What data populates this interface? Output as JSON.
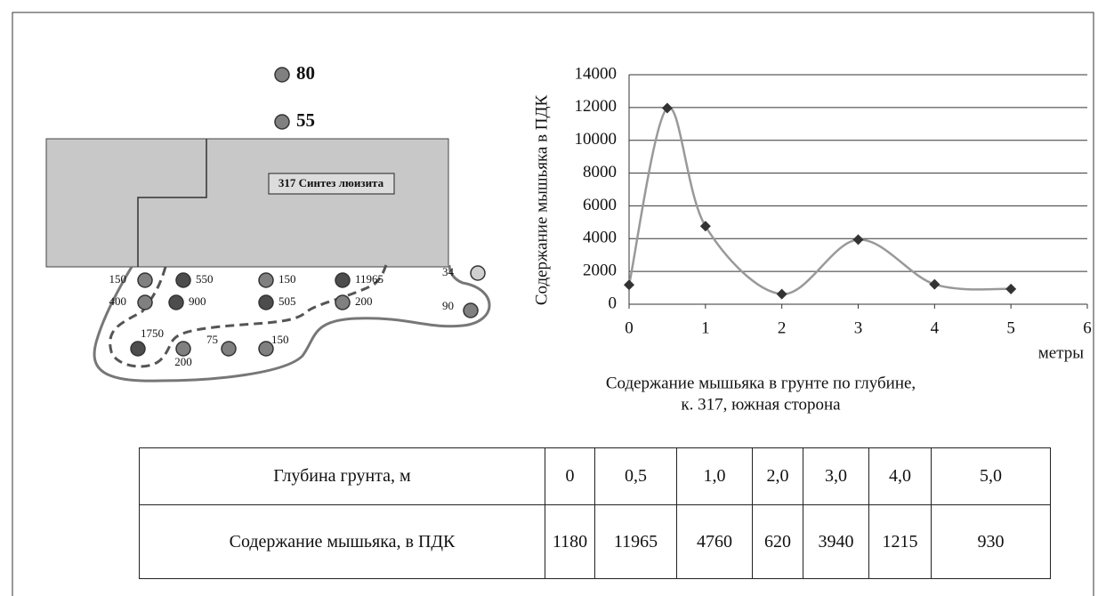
{
  "chart_data": {
    "type": "line",
    "ylabel": "Содержание мышьяка в ПДК",
    "xlabel": "метры",
    "caption": [
      "Содержание мышьяка в грунте по глубине,",
      "к. 317, южная сторона"
    ],
    "x": [
      0,
      0.5,
      1,
      2,
      3,
      4,
      5
    ],
    "series": [
      {
        "color": "#999999",
        "marker_color": "#333333",
        "values": [
          1180,
          11965,
          4760,
          620,
          3940,
          1215,
          930
        ]
      }
    ],
    "xlim": [
      0,
      6
    ],
    "xticks": [
      0,
      1,
      2,
      3,
      4,
      5,
      6
    ],
    "ylim": [
      0,
      14000
    ],
    "yticks": [
      0,
      2000,
      4000,
      6000,
      8000,
      10000,
      12000,
      14000
    ],
    "grid": true,
    "smooth": true
  },
  "map": {
    "building_label": "317 Синтез люизита",
    "points": [
      {
        "label": "80",
        "color": "#808080"
      },
      {
        "label": "55",
        "color": "#808080"
      },
      {
        "label": "150",
        "color": "#808080"
      },
      {
        "label": "550",
        "color": "#4d4d4d"
      },
      {
        "label": "150",
        "color": "#808080"
      },
      {
        "label": "11965",
        "color": "#4d4d4d"
      },
      {
        "label": "34",
        "color": "#d0d0d0"
      },
      {
        "label": "400",
        "color": "#808080"
      },
      {
        "label": "900",
        "color": "#4d4d4d"
      },
      {
        "label": "505",
        "color": "#4d4d4d"
      },
      {
        "label": "200",
        "color": "#808080"
      },
      {
        "label": "90",
        "color": "#808080"
      },
      {
        "label": "1750",
        "color": "#4d4d4d"
      },
      {
        "label": "200",
        "color": "#808080"
      },
      {
        "label": "75",
        "color": "#808080"
      },
      {
        "label": "150",
        "color": "#808080"
      }
    ]
  },
  "table": {
    "rows": [
      [
        "Глубина грунта, м",
        "0",
        "0,5",
        "1,0",
        "2,0",
        "3,0",
        "4,0",
        "5,0"
      ],
      [
        "Содержание мышьяка, в ПДК",
        "1180",
        "11965",
        "4760",
        "620",
        "3940",
        "1215",
        "930"
      ]
    ]
  }
}
